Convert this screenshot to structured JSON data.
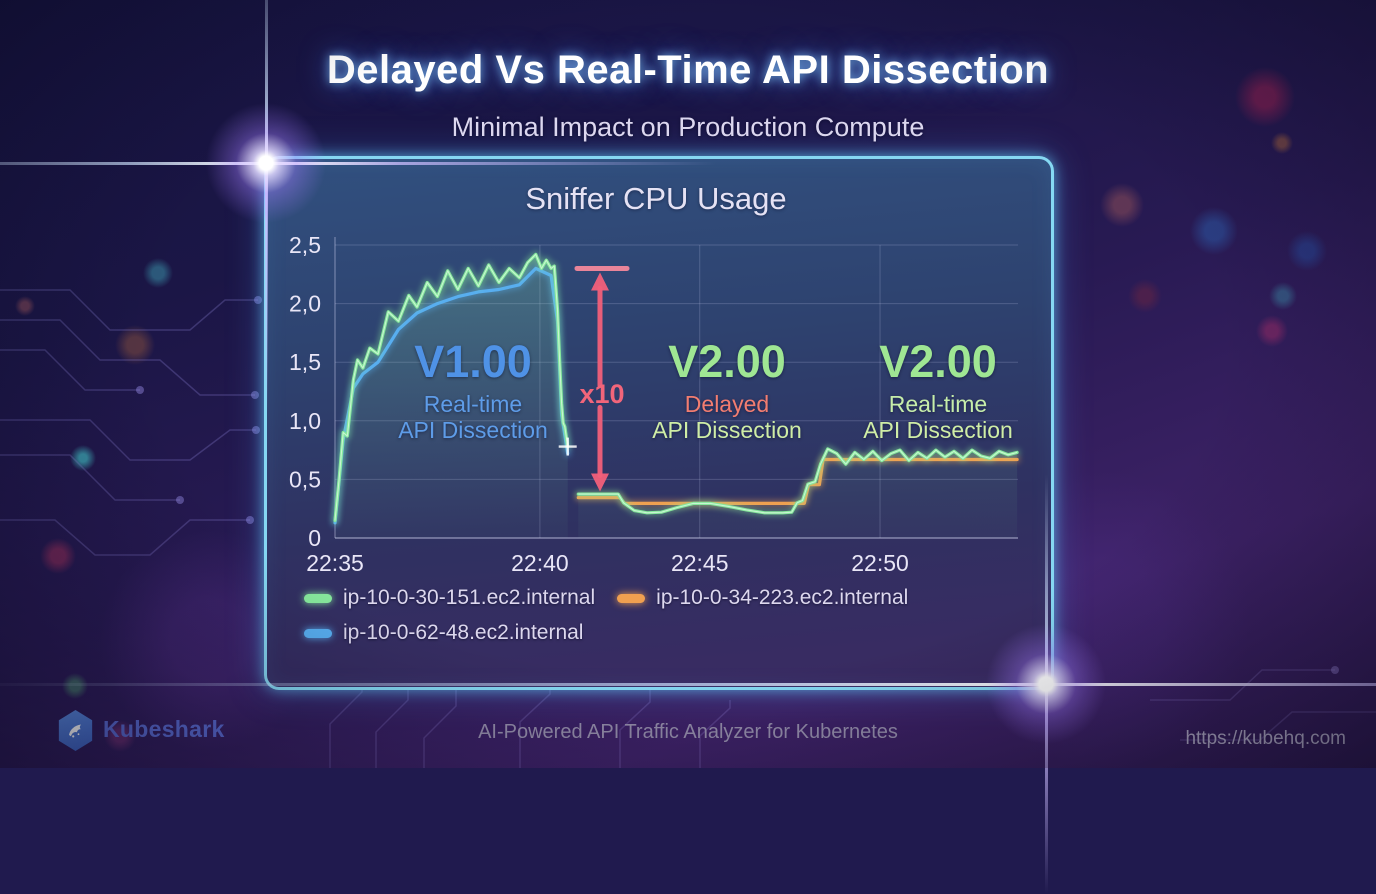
{
  "header": {
    "title": "Delayed Vs Real-Time API Dissection",
    "subtitle": "Minimal Impact on Production Compute"
  },
  "chart_panel": {
    "title": "Sniffer CPU Usage"
  },
  "annotations": {
    "v1": {
      "version": "V1.00",
      "mode": "Real-time",
      "product": "API Dissection"
    },
    "v2_delayed": {
      "version": "V2.00",
      "mode": "Delayed",
      "product": "API Dissection"
    },
    "v2_realtime": {
      "version": "V2.00",
      "mode": "Real-time",
      "product": "API Dissection"
    },
    "multiplier_label": "x10"
  },
  "legend": [
    {
      "label": "ip-10-0-30-151.ec2.internal",
      "color": "#86e89c"
    },
    {
      "label": "ip-10-0-34-223.ec2.internal",
      "color": "#f0a050"
    },
    {
      "label": "ip-10-0-62-48.ec2.internal",
      "color": "#58aef0"
    }
  ],
  "footer": {
    "brand": "Kubeshark",
    "tagline": "AI-Powered API Traffic Analyzer for Kubernetes",
    "url": "https://kubehq.com"
  },
  "colors": {
    "panel_border": "#8ae0fa",
    "arrow": "#f2607a",
    "grid": "rgba(200,205,240,0.22)"
  },
  "chart_data": {
    "type": "line",
    "title": "Sniffer CPU Usage",
    "x_ticks": [
      {
        "label": "22:35",
        "minute": 0
      },
      {
        "label": "22:40",
        "minute": 5
      },
      {
        "label": "22:45",
        "minute": 10
      },
      {
        "label": "22:50",
        "minute": 15
      }
    ],
    "y_ticks": [
      {
        "label": "0",
        "value": 0
      },
      {
        "label": "0,5",
        "value": 0.5
      },
      {
        "label": "1,0",
        "value": 1.0
      },
      {
        "label": "1,5",
        "value": 1.5
      },
      {
        "label": "2,0",
        "value": 2.0
      },
      {
        "label": "2,5",
        "value": 2.5
      }
    ],
    "ylim": [
      0,
      2.5
    ],
    "grid": true,
    "legend_position": "bottom-left",
    "axis_map": {
      "tick_minutes": [
        0,
        5,
        10,
        15,
        20
      ],
      "tick_fractions": [
        0,
        0.3,
        0.534,
        0.798,
        1.062
      ]
    },
    "series": [
      {
        "name": "ip-10-0-30-151.ec2.internal",
        "color": "#86e89c",
        "fill": true,
        "core": true,
        "segments": [
          [
            [
              0,
              0.15
            ],
            [
              0.1,
              0.5
            ],
            [
              0.2,
              0.9
            ],
            [
              0.3,
              0.87
            ],
            [
              0.45,
              1.35
            ],
            [
              0.55,
              1.52
            ],
            [
              0.68,
              1.45
            ],
            [
              0.85,
              1.62
            ],
            [
              1.05,
              1.57
            ],
            [
              1.3,
              1.93
            ],
            [
              1.55,
              1.85
            ],
            [
              1.8,
              2.07
            ],
            [
              2.0,
              1.97
            ],
            [
              2.25,
              2.18
            ],
            [
              2.5,
              2.06
            ],
            [
              2.75,
              2.28
            ],
            [
              3.0,
              2.12
            ],
            [
              3.25,
              2.3
            ],
            [
              3.5,
              2.15
            ],
            [
              3.75,
              2.33
            ],
            [
              4.0,
              2.18
            ],
            [
              4.25,
              2.3
            ],
            [
              4.5,
              2.22
            ],
            [
              4.7,
              2.35
            ],
            [
              4.9,
              2.42
            ],
            [
              5.05,
              2.3
            ],
            [
              5.2,
              2.37
            ],
            [
              5.35,
              2.3
            ],
            [
              5.45,
              2.32
            ],
            [
              5.55,
              1.95
            ],
            [
              5.62,
              1.5
            ],
            [
              5.68,
              1.15
            ],
            [
              5.73,
              0.98
            ],
            [
              5.78,
              0.95
            ],
            [
              5.87,
              0.78
            ]
          ],
          [
            [
              6.2,
              0.375
            ],
            [
              7.45,
              0.375
            ],
            [
              7.62,
              0.3
            ],
            [
              7.95,
              0.235
            ],
            [
              8.35,
              0.215
            ],
            [
              8.8,
              0.22
            ],
            [
              9.3,
              0.26
            ],
            [
              9.8,
              0.295
            ],
            [
              10.3,
              0.295
            ],
            [
              10.8,
              0.27
            ],
            [
              11.3,
              0.24
            ],
            [
              11.8,
              0.215
            ],
            [
              12.3,
              0.215
            ],
            [
              12.55,
              0.22
            ],
            [
              12.7,
              0.3
            ],
            [
              12.85,
              0.32
            ],
            [
              13.0,
              0.46
            ],
            [
              13.2,
              0.48
            ],
            [
              13.35,
              0.63
            ],
            [
              13.55,
              0.76
            ],
            [
              13.8,
              0.72
            ],
            [
              14.05,
              0.63
            ],
            [
              14.3,
              0.73
            ],
            [
              14.55,
              0.67
            ],
            [
              14.8,
              0.74
            ],
            [
              15.05,
              0.66
            ],
            [
              15.3,
              0.72
            ],
            [
              15.55,
              0.75
            ],
            [
              15.8,
              0.66
            ],
            [
              16.05,
              0.73
            ],
            [
              16.3,
              0.68
            ],
            [
              16.55,
              0.75
            ],
            [
              16.8,
              0.69
            ],
            [
              17.05,
              0.74
            ],
            [
              17.3,
              0.68
            ],
            [
              17.55,
              0.75
            ],
            [
              17.8,
              0.7
            ],
            [
              18.05,
              0.68
            ],
            [
              18.3,
              0.74
            ],
            [
              18.55,
              0.71
            ],
            [
              18.8,
              0.73
            ]
          ]
        ]
      },
      {
        "name": "ip-10-0-34-223.ec2.internal",
        "color": "#f0a050",
        "fill": false,
        "core": false,
        "segments": [
          [
            [
              6.2,
              0.345
            ],
            [
              7.5,
              0.345
            ],
            [
              7.65,
              0.295
            ],
            [
              12.9,
              0.295
            ],
            [
              13.02,
              0.455
            ],
            [
              13.32,
              0.455
            ],
            [
              13.42,
              0.67
            ],
            [
              18.8,
              0.67
            ]
          ]
        ]
      },
      {
        "name": "ip-10-0-62-48.ec2.internal",
        "color": "#58aef0",
        "fill": false,
        "core": false,
        "segments": [
          [
            [
              0,
              0.13
            ],
            [
              0.2,
              0.84
            ],
            [
              0.45,
              1.28
            ],
            [
              0.68,
              1.4
            ],
            [
              1.05,
              1.5
            ],
            [
              1.55,
              1.78
            ],
            [
              2.0,
              1.92
            ],
            [
              2.5,
              2.0
            ],
            [
              3.0,
              2.06
            ],
            [
              3.5,
              2.1
            ],
            [
              4.0,
              2.12
            ],
            [
              4.5,
              2.16
            ],
            [
              4.9,
              2.3
            ],
            [
              5.35,
              2.24
            ],
            [
              5.55,
              1.85
            ],
            [
              5.68,
              1.05
            ],
            [
              5.78,
              0.88
            ],
            [
              5.87,
              0.72
            ]
          ]
        ]
      }
    ],
    "arrow_annotation": {
      "label": "x10",
      "minute": 6.88,
      "from_value": 2.3,
      "to_value": 0.38,
      "color": "#f2607a"
    }
  }
}
